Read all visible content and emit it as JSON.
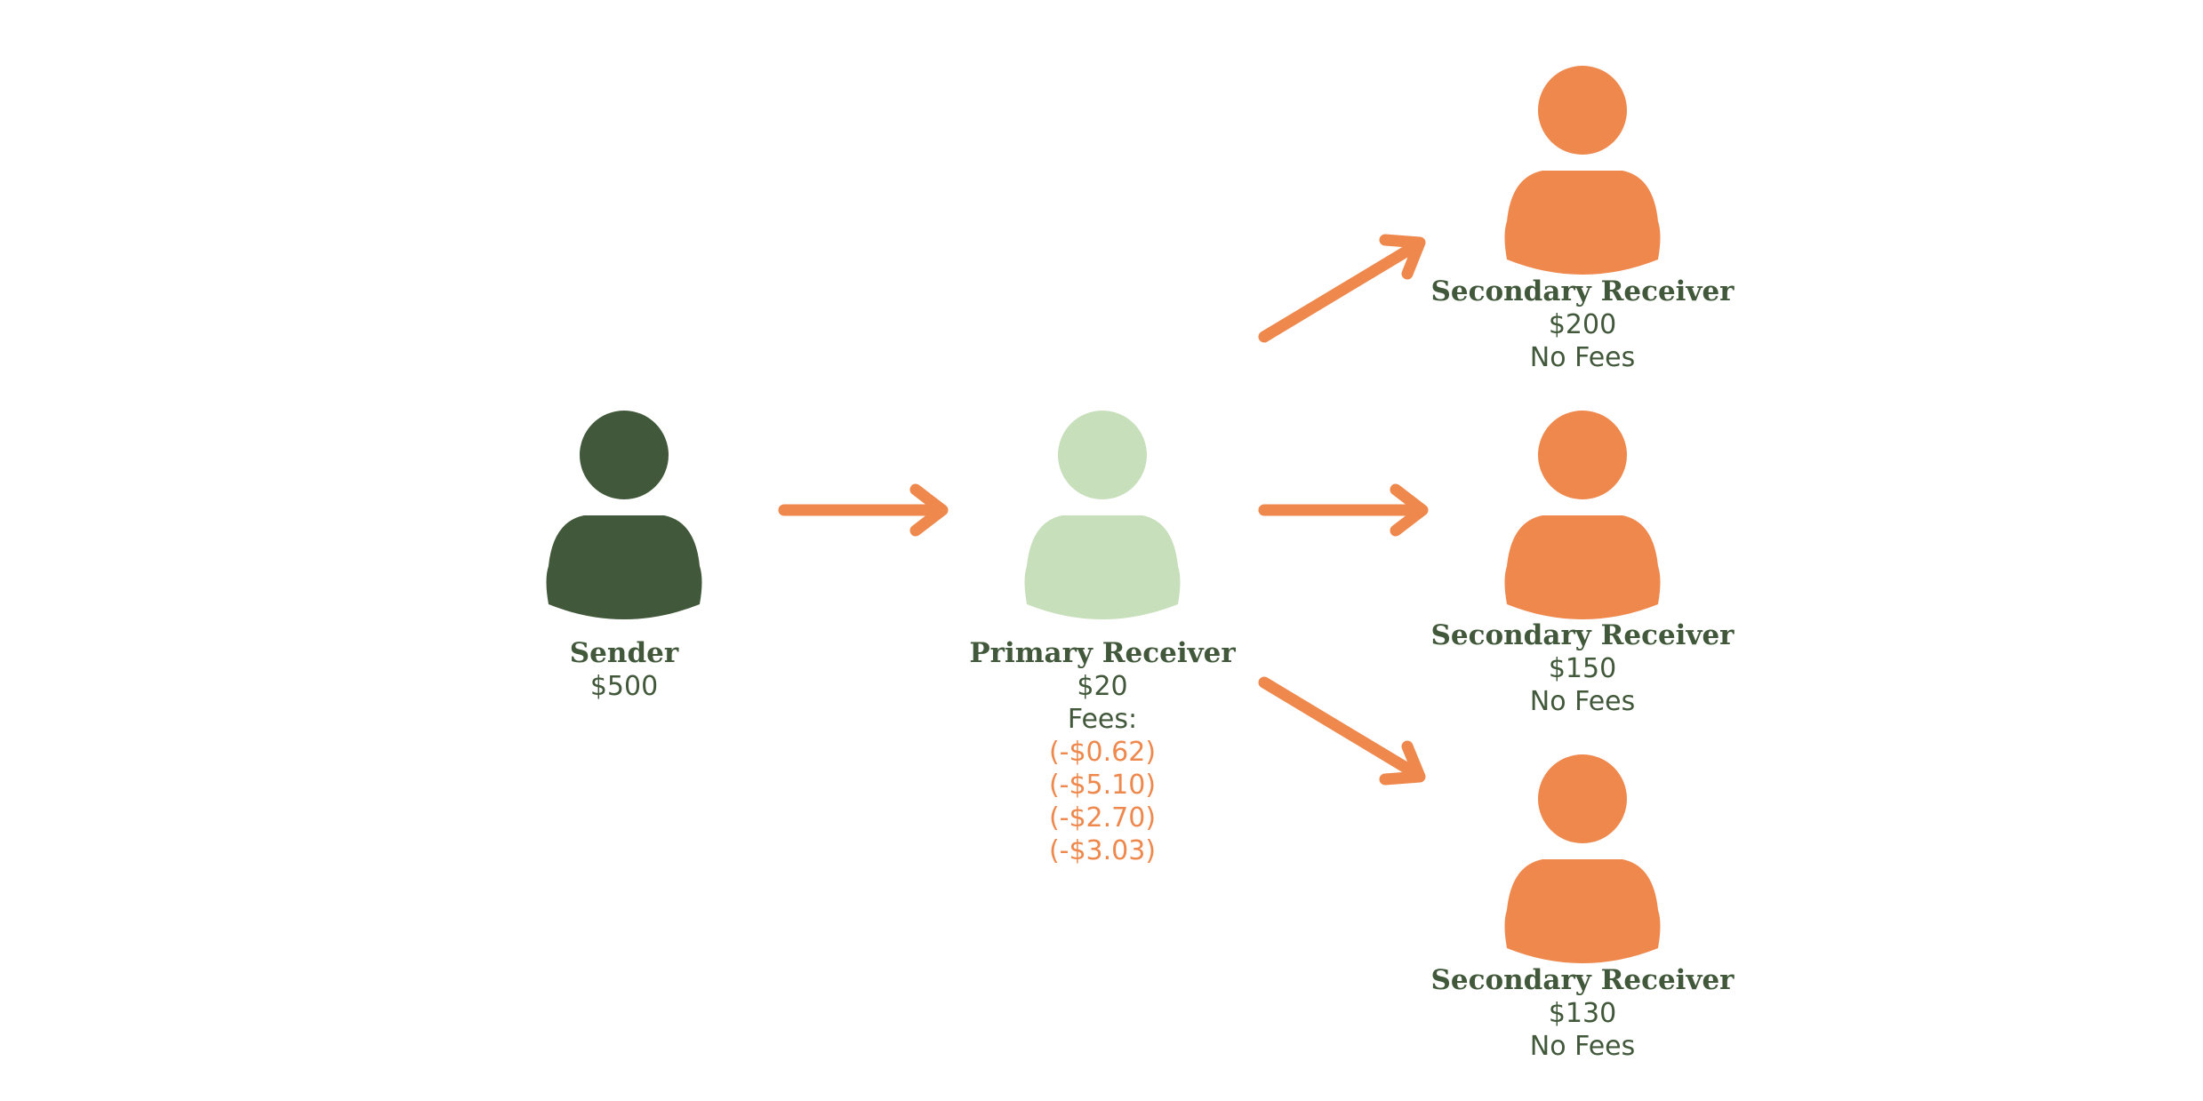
{
  "colors": {
    "sender": "#41583a",
    "primary": "#c7dfba",
    "secondary": "#ee884d",
    "arrow": "#ee884d",
    "text": "#41583a",
    "fee_text": "#ee884d"
  },
  "sender": {
    "title": "Sender",
    "amount": "$500",
    "icon": "person-icon"
  },
  "primary": {
    "title": "Primary Receiver",
    "amount": "$20",
    "fees_label": "Fees:",
    "fees": [
      "(-$0.62)",
      "(-$5.10)",
      "(-$2.70)",
      "(-$3.03)"
    ],
    "icon": "person-icon"
  },
  "secondary": [
    {
      "title": "Secondary Receiver",
      "amount": "$200",
      "note": "No Fees",
      "icon": "person-icon"
    },
    {
      "title": "Secondary Receiver",
      "amount": "$150",
      "note": "No Fees",
      "icon": "person-icon"
    },
    {
      "title": "Secondary Receiver",
      "amount": "$130",
      "note": "No Fees",
      "icon": "person-icon"
    }
  ]
}
